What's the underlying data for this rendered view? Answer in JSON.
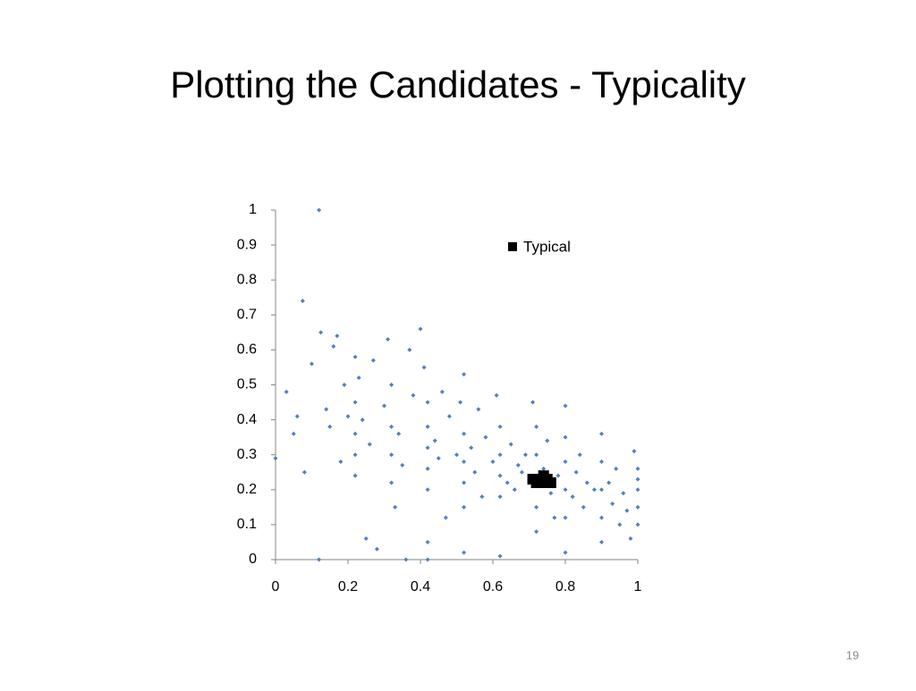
{
  "title": "Plotting the Candidates - Typicality",
  "page_number": "19",
  "chart_data": {
    "type": "scatter",
    "xlim": [
      0,
      1
    ],
    "ylim": [
      0,
      1
    ],
    "xticks": [
      0,
      0.2,
      0.4,
      0.6,
      0.8,
      1
    ],
    "yticks": [
      0,
      0.1,
      0.2,
      0.3,
      0.4,
      0.5,
      0.6,
      0.7,
      0.8,
      0.9,
      1
    ],
    "series": [
      {
        "color": "#4f81bd",
        "x": [
          0,
          0.03,
          0.05,
          0.06,
          0.075,
          0.08,
          0.1,
          0.12,
          0.125,
          0.12,
          0.14,
          0.15,
          0.16,
          0.17,
          0.18,
          0.2,
          0.19,
          0.22,
          0.22,
          0.22,
          0.22,
          0.22,
          0.23,
          0.24,
          0.25,
          0.26,
          0.27,
          0.28,
          0.3,
          0.31,
          0.32,
          0.32,
          0.32,
          0.32,
          0.33,
          0.34,
          0.35,
          0.36,
          0.37,
          0.38,
          0.4,
          0.41,
          0.42,
          0.42,
          0.42,
          0.42,
          0.42,
          0.42,
          0.42,
          0.44,
          0.45,
          0.46,
          0.47,
          0.48,
          0.5,
          0.51,
          0.52,
          0.52,
          0.52,
          0.52,
          0.52,
          0.52,
          0.54,
          0.55,
          0.56,
          0.57,
          0.58,
          0.6,
          0.61,
          0.62,
          0.62,
          0.62,
          0.62,
          0.62,
          0.64,
          0.65,
          0.66,
          0.67,
          0.68,
          0.69,
          0.71,
          0.72,
          0.72,
          0.72,
          0.72,
          0.72,
          0.74,
          0.75,
          0.76,
          0.77,
          0.78,
          0.8,
          0.8,
          0.8,
          0.8,
          0.8,
          0.8,
          0.82,
          0.83,
          0.84,
          0.85,
          0.86,
          0.88,
          0.9,
          0.9,
          0.9,
          0.9,
          0.9,
          0.92,
          0.93,
          0.94,
          0.95,
          0.96,
          0.97,
          0.99,
          1,
          1,
          1,
          1,
          0.98,
          1
        ],
        "y": [
          0.29,
          0.48,
          0.36,
          0.41,
          0.74,
          0.25,
          0.56,
          1,
          0.65,
          0,
          0.43,
          0.38,
          0.61,
          0.64,
          0.28,
          0.41,
          0.5,
          0.58,
          0.45,
          0.36,
          0.3,
          0.24,
          0.52,
          0.4,
          0.06,
          0.33,
          0.57,
          0.03,
          0.44,
          0.63,
          0.5,
          0.38,
          0.3,
          0.22,
          0.15,
          0.36,
          0.27,
          0,
          0.6,
          0.47,
          0.66,
          0.55,
          0.45,
          0.38,
          0.32,
          0.26,
          0.2,
          0.05,
          0,
          0.34,
          0.29,
          0.48,
          0.12,
          0.41,
          0.3,
          0.45,
          0.53,
          0.36,
          0.28,
          0.22,
          0.15,
          0.02,
          0.32,
          0.25,
          0.43,
          0.18,
          0.35,
          0.28,
          0.47,
          0.38,
          0.3,
          0.24,
          0.18,
          0.01,
          0.22,
          0.33,
          0.2,
          0.27,
          0.25,
          0.3,
          0.45,
          0.38,
          0.3,
          0.22,
          0.15,
          0.08,
          0.26,
          0.34,
          0.19,
          0.12,
          0.24,
          0.44,
          0.35,
          0.28,
          0.2,
          0.12,
          0.02,
          0.18,
          0.25,
          0.3,
          0.15,
          0.22,
          0.2,
          0.36,
          0.28,
          0.2,
          0.12,
          0.05,
          0.22,
          0.16,
          0.26,
          0.1,
          0.19,
          0.14,
          0.31,
          0.26,
          0.2,
          0.15,
          0.1,
          0.06,
          0.23
        ]
      },
      {
        "name": "Typical",
        "color": "#000000",
        "x": [
          0.71,
          0.72,
          0.73,
          0.74,
          0.75,
          0.76,
          0.74
        ],
        "y": [
          0.23,
          0.22,
          0.23,
          0.22,
          0.23,
          0.22,
          0.24
        ]
      }
    ]
  }
}
